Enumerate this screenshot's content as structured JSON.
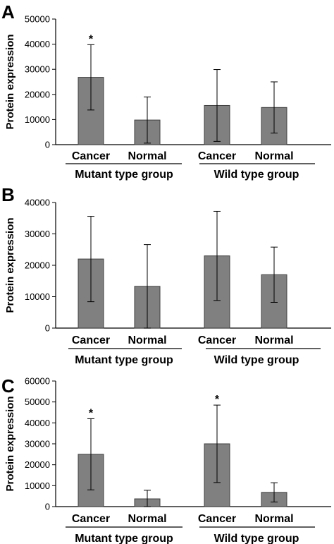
{
  "colors": {
    "bar": "#808080",
    "bar_edge": "#404040",
    "axis": "#000000",
    "errorbar": "#000000"
  },
  "chart_data": [
    {
      "type": "bar",
      "panel": "A",
      "ylabel": "Protein expression",
      "ylim": [
        0,
        50000
      ],
      "yticks": [
        0,
        10000,
        20000,
        30000,
        40000,
        50000
      ],
      "categories": [
        "Cancer",
        "Normal",
        "Cancer",
        "Normal"
      ],
      "groups": [
        "Mutant type group",
        "Wild type group"
      ],
      "values": [
        26800,
        9800,
        15600,
        14800
      ],
      "errors": [
        13000,
        9200,
        14300,
        10200
      ],
      "significance": [
        "*",
        "",
        "",
        ""
      ],
      "grid": false
    },
    {
      "type": "bar",
      "panel": "B",
      "ylabel": "Protein expression",
      "ylim": [
        0,
        40000
      ],
      "yticks": [
        0,
        10000,
        20000,
        30000,
        40000
      ],
      "categories": [
        "Cancer",
        "Normal",
        "Cancer",
        "Normal"
      ],
      "groups": [
        "Mutant type group",
        "Wild type group"
      ],
      "values": [
        22000,
        13300,
        23000,
        17000
      ],
      "errors": [
        13600,
        13300,
        14200,
        8800
      ],
      "significance": [
        "",
        "",
        "",
        ""
      ],
      "grid": false
    },
    {
      "type": "bar",
      "panel": "C",
      "ylabel": "Protein expression",
      "ylim": [
        0,
        60000
      ],
      "yticks": [
        0,
        10000,
        20000,
        30000,
        40000,
        50000,
        60000
      ],
      "categories": [
        "Cancer",
        "Normal",
        "Cancer",
        "Normal"
      ],
      "groups": [
        "Mutant type group",
        "Wild type group"
      ],
      "values": [
        25000,
        3700,
        30000,
        6800
      ],
      "errors": [
        17000,
        4100,
        18500,
        4600
      ],
      "significance": [
        "*",
        "",
        "*",
        ""
      ],
      "grid": false
    }
  ]
}
